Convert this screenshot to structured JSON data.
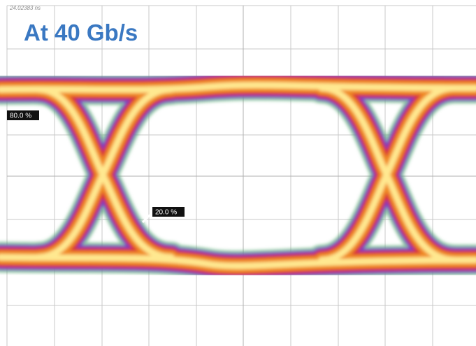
{
  "header": {
    "timestamp": "24.02383 ns",
    "title": "At 40 Gb/s"
  },
  "markers": [
    {
      "label": "80.0 %"
    },
    {
      "label": "20.0 %"
    }
  ]
}
